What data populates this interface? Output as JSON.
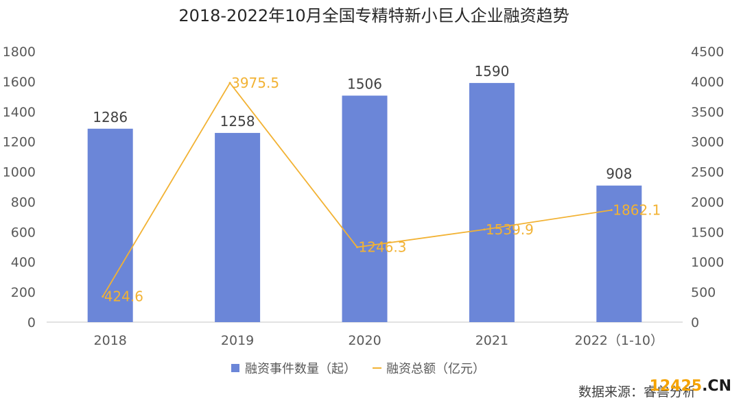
{
  "chart_data": {
    "type": "bar",
    "title": "2018-2022年10月全国专精特新小巨人企业融资趋势",
    "categories": [
      "2018",
      "2019",
      "2020",
      "2021",
      "2022（1-10）"
    ],
    "series": [
      {
        "name": "融资事件数量（起）",
        "type": "bar",
        "axis": "left",
        "values": [
          1286,
          1258,
          1506,
          1590,
          908
        ],
        "color": "#6b86d8"
      },
      {
        "name": "融资总额（亿元）",
        "type": "line",
        "axis": "right",
        "values": [
          424.6,
          3975.5,
          1246.3,
          1539.9,
          1862.1
        ],
        "color": "#f2b233"
      }
    ],
    "left_axis": {
      "ylim": [
        0,
        1800
      ],
      "ticks": [
        "0",
        "200",
        "400",
        "600",
        "800",
        "1000",
        "1200",
        "1400",
        "1600",
        "1800"
      ]
    },
    "right_axis": {
      "ylim": [
        0,
        4500
      ],
      "ticks": [
        "0",
        "500",
        "1000",
        "1500",
        "2000",
        "2500",
        "3000",
        "3500",
        "4000",
        "4500"
      ]
    },
    "bar_labels": [
      "1286",
      "1258",
      "1506",
      "1590",
      "908"
    ],
    "line_labels": [
      "424.6",
      "3975.5",
      "1246.3",
      "1539.9",
      "1862.1"
    ],
    "legend_position": "bottom",
    "grid": false
  },
  "source": "数据来源：睿兽分析",
  "watermark": {
    "digits": "12425",
    "suffix": ".CN"
  }
}
